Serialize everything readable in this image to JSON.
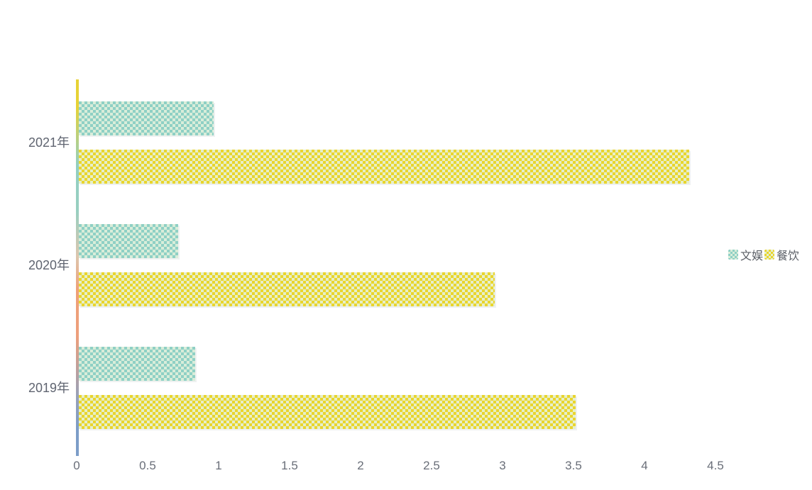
{
  "chart_data": {
    "type": "bar",
    "orientation": "horizontal",
    "title": "",
    "xlabel": "",
    "ylabel": "",
    "categories": [
      "2021年",
      "2020年",
      "2019年"
    ],
    "series": [
      {
        "name": "文娱",
        "color": "#8fd0c5",
        "pattern_dot_color": "#d9edd9",
        "values": [
          0.95,
          0.7,
          0.82
        ]
      },
      {
        "name": "餐饮",
        "color": "#e9d52e",
        "pattern_dot_color": "#e6efca",
        "values": [
          4.3,
          2.93,
          3.5
        ]
      }
    ],
    "xlim": [
      0,
      4.5
    ],
    "xticks": [
      "0",
      "0.5",
      "1",
      "1.5",
      "2",
      "2.5",
      "3",
      "3.5",
      "4",
      "4.5"
    ],
    "grid": "off",
    "legend_position": "right-middle",
    "axis_line_gradient": [
      "#e7d235",
      "#92cfc3",
      "#ddc6ae",
      "#efa078",
      "#7c9dc8"
    ],
    "decal_pattern": "checker",
    "text_color": "#5f6470"
  }
}
